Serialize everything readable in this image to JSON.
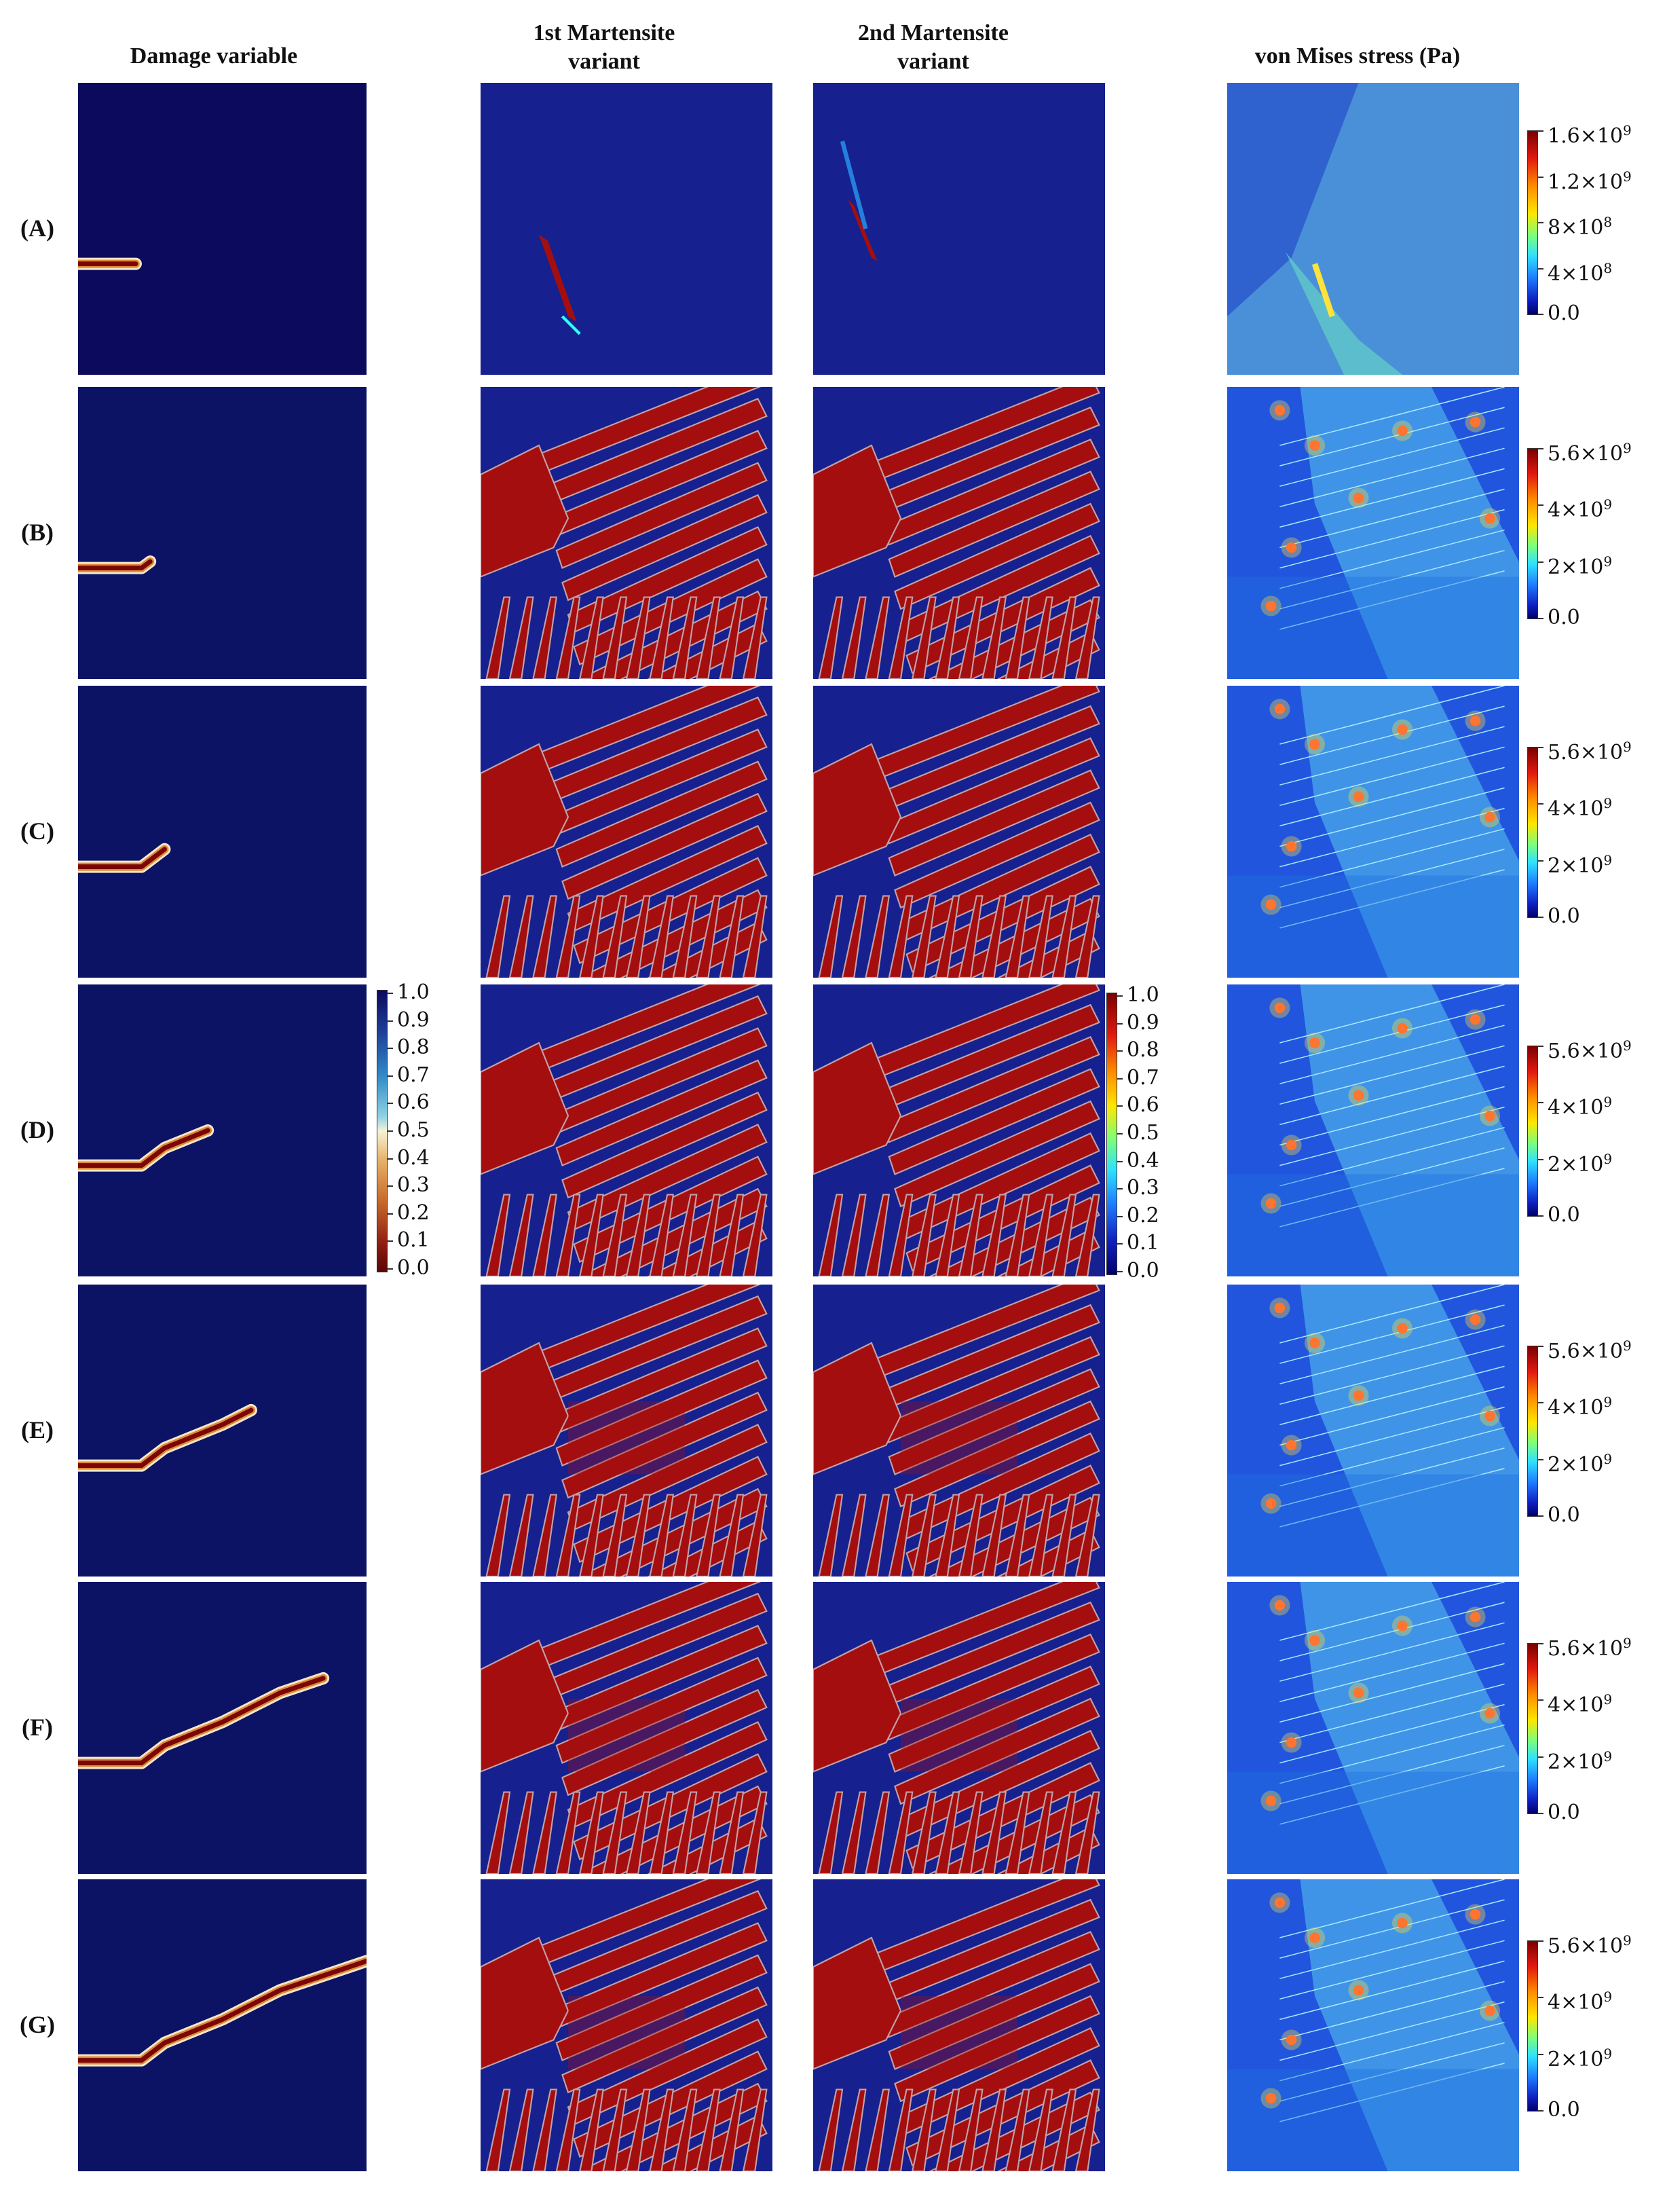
{
  "headers": {
    "damage": "Damage variable",
    "m1": "1st Martensite variant",
    "m2": "2nd Martensite variant",
    "vm": "von Mises stress (Pa)"
  },
  "rows": [
    {
      "label": "(A)",
      "vm_ticks": [
        {
          "v": "1.6×10",
          "e": "9"
        },
        {
          "v": "1.2×10",
          "e": "9"
        },
        {
          "v": "8×10",
          "e": "8"
        },
        {
          "v": "4×10",
          "e": "8"
        },
        {
          "v": "0.0",
          "e": ""
        }
      ]
    },
    {
      "label": "(B)",
      "vm_ticks": [
        {
          "v": "5.6×10",
          "e": "9"
        },
        {
          "v": "4×10",
          "e": "9"
        },
        {
          "v": "2×10",
          "e": "9"
        },
        {
          "v": "0.0",
          "e": ""
        }
      ]
    },
    {
      "label": "(C)",
      "vm_ticks": [
        {
          "v": "5.6×10",
          "e": "9"
        },
        {
          "v": "4×10",
          "e": "9"
        },
        {
          "v": "2×10",
          "e": "9"
        },
        {
          "v": "0.0",
          "e": ""
        }
      ]
    },
    {
      "label": "(D)",
      "vm_ticks": [
        {
          "v": "5.6×10",
          "e": "9"
        },
        {
          "v": "4×10",
          "e": "9"
        },
        {
          "v": "2×10",
          "e": "9"
        },
        {
          "v": "0.0",
          "e": ""
        }
      ]
    },
    {
      "label": "(E)",
      "vm_ticks": [
        {
          "v": "5.6×10",
          "e": "9"
        },
        {
          "v": "4×10",
          "e": "9"
        },
        {
          "v": "2×10",
          "e": "9"
        },
        {
          "v": "0.0",
          "e": ""
        }
      ]
    },
    {
      "label": "(F)",
      "vm_ticks": [
        {
          "v": "5.6×10",
          "e": "9"
        },
        {
          "v": "4×10",
          "e": "9"
        },
        {
          "v": "2×10",
          "e": "9"
        },
        {
          "v": "0.0",
          "e": ""
        }
      ]
    },
    {
      "label": "(G)",
      "vm_ticks": [
        {
          "v": "5.6×10",
          "e": "9"
        },
        {
          "v": "4×10",
          "e": "9"
        },
        {
          "v": "2×10",
          "e": "9"
        },
        {
          "v": "0.0",
          "e": ""
        }
      ]
    }
  ],
  "damage_colorbar": [
    "1.0",
    "0.9",
    "0.8",
    "0.7",
    "0.6",
    "0.5",
    "0.4",
    "0.3",
    "0.2",
    "0.1",
    "0.0"
  ],
  "martensite_colorbar": [
    "1.0",
    "0.9",
    "0.8",
    "0.7",
    "0.6",
    "0.5",
    "0.4",
    "0.3",
    "0.2",
    "0.1",
    "0.0"
  ],
  "colors": {
    "navy": "#0b0a5c",
    "deep_blue": "#16208f",
    "red": "#a50e0e",
    "vm_bg": "#2255dd"
  }
}
